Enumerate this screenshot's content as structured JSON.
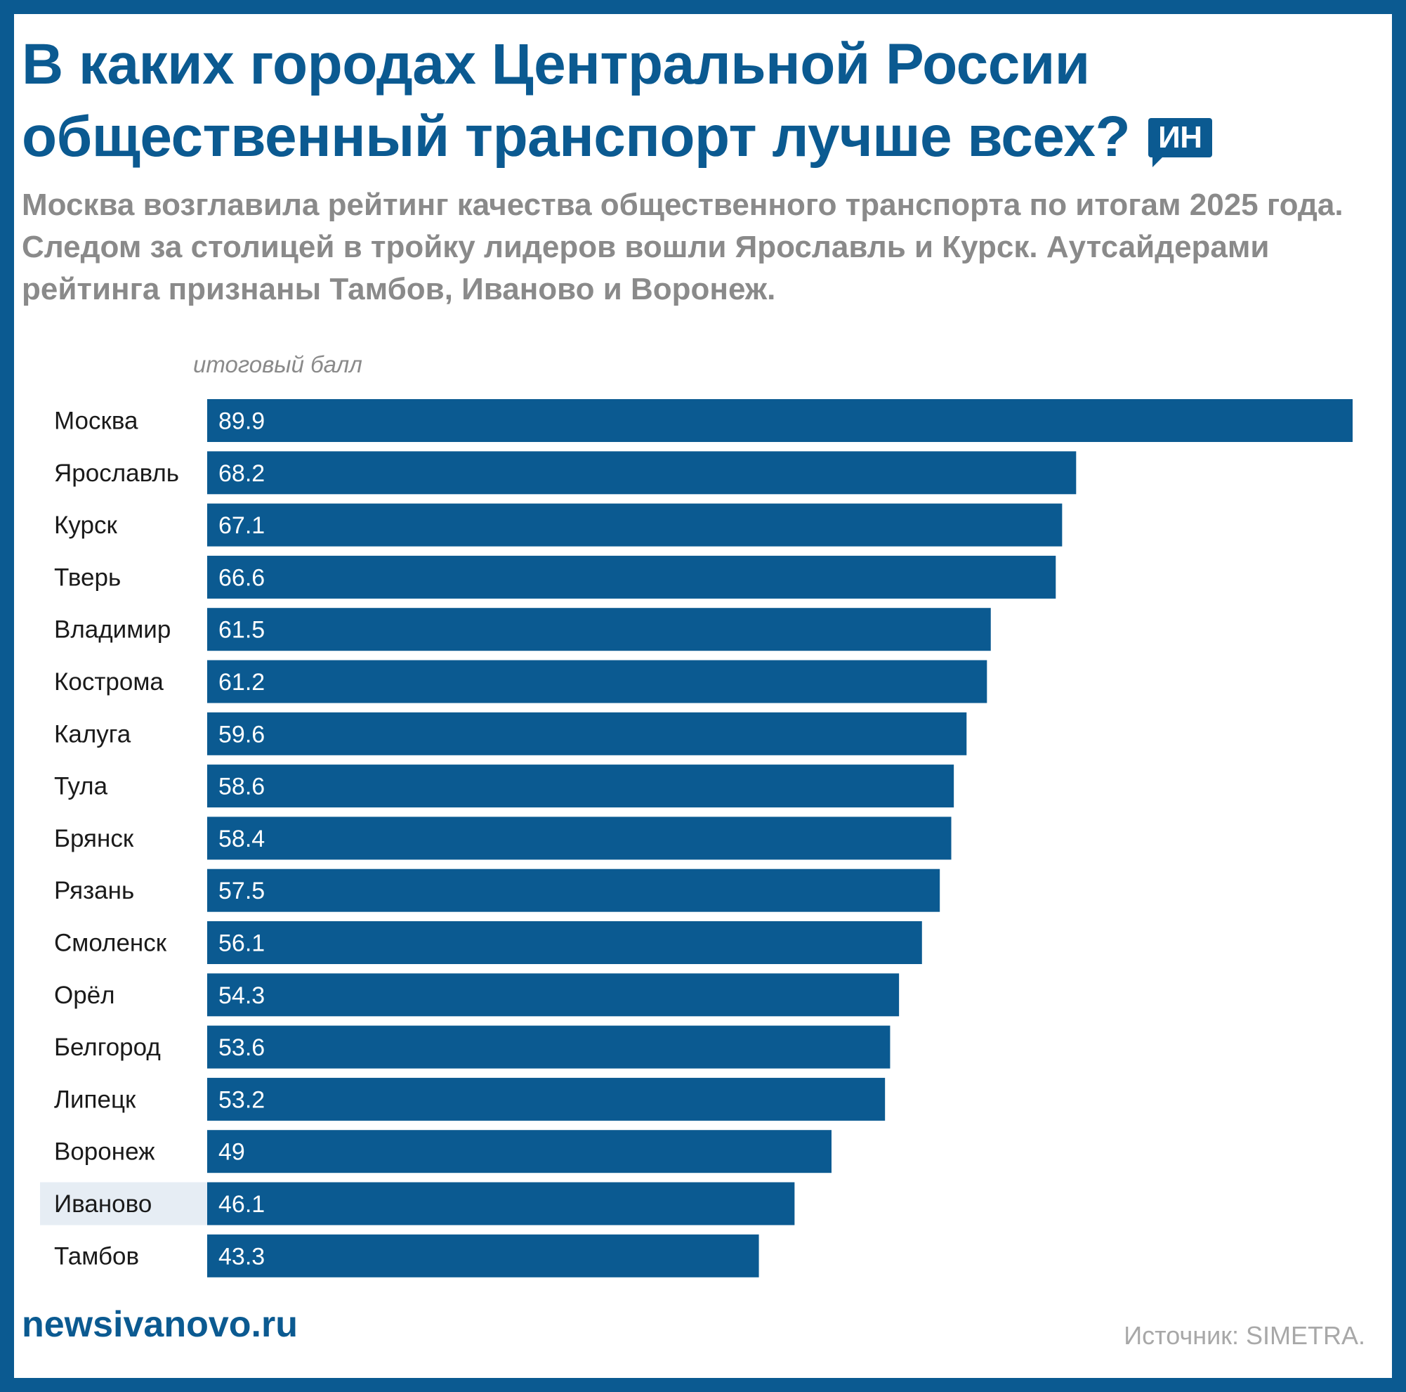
{
  "header": {
    "title": "В каких городах Центральной России общественный транспорт лучше всех?",
    "logo_text": "ИН",
    "subtitle": "Москва возглавила рейтинг качества общественного транспорта по итогам 2025 года. Следом за столицей в тройку лидеров вошли Ярославль и Курск. Аутсайдерами рейтинга признаны Тамбов, Иваново и Воронеж."
  },
  "footer": {
    "site": "newsivanovo.ru",
    "source": "Источник: SIMETRA."
  },
  "colors": {
    "bar": "#0b5a91",
    "highlight_bg": "#e6edf4",
    "border": "#0b5a91"
  },
  "chart_data": {
    "type": "bar",
    "orientation": "horizontal",
    "axis_label": "итоговый балл",
    "categories": [
      "Москва",
      "Ярославль",
      "Курск",
      "Тверь",
      "Владимир",
      "Кострома",
      "Калуга",
      "Тула",
      "Брянск",
      "Рязань",
      "Смоленск",
      "Орёл",
      "Белгород",
      "Липецк",
      "Воронеж",
      "Иваново",
      "Тамбов"
    ],
    "values": [
      89.9,
      68.2,
      67.1,
      66.6,
      61.5,
      61.2,
      59.6,
      58.6,
      58.4,
      57.5,
      56.1,
      54.3,
      53.6,
      53.2,
      49,
      46.1,
      43.3
    ],
    "highlighted_category": "Иваново",
    "xlim": [
      0,
      89.9
    ],
    "grid": false,
    "legend": "none"
  }
}
